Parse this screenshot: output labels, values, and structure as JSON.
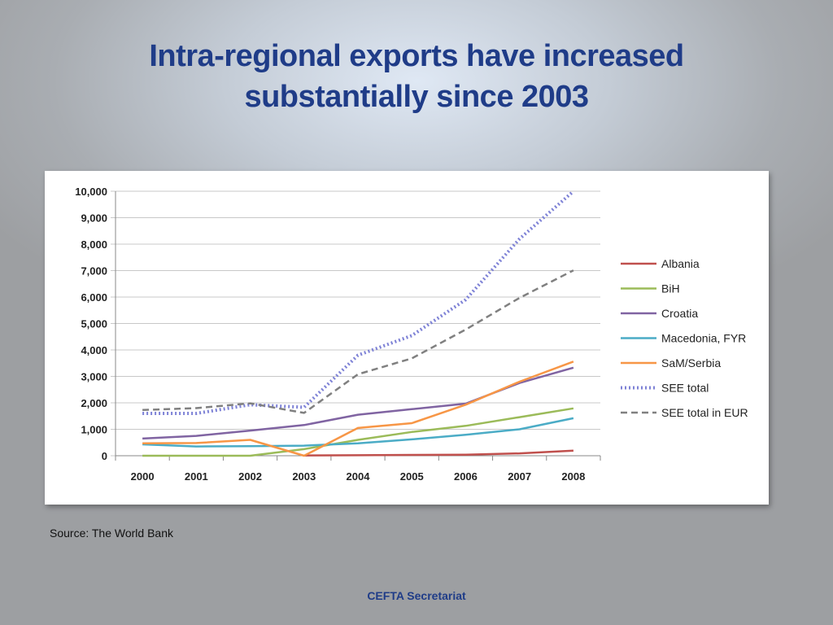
{
  "slide": {
    "title_line1": "Intra-regional exports have increased",
    "title_line2": "substantially since 2003",
    "source": "Source: The World Bank",
    "footer": "CEFTA Secretariat"
  },
  "chart_data": {
    "type": "line",
    "title": "",
    "xlabel": "",
    "ylabel": "",
    "ylim": [
      0,
      10000
    ],
    "yticks": [
      0,
      1000,
      2000,
      3000,
      4000,
      5000,
      6000,
      7000,
      8000,
      9000,
      10000
    ],
    "ytick_labels": [
      "0",
      "1,000",
      "2,000",
      "3,000",
      "4,000",
      "5,000",
      "6,000",
      "7,000",
      "8,000",
      "9,000",
      "10,000"
    ],
    "grid": "horizontal",
    "legend_position": "right",
    "categories": [
      "2000",
      "2001",
      "2002",
      "2003",
      "2004",
      "2005",
      "2006",
      "2007",
      "2008"
    ],
    "series": [
      {
        "name": "Albania",
        "color": "#c0504d",
        "style": "solid",
        "values": [
          null,
          null,
          null,
          10,
          20,
          30,
          40,
          90,
          190
        ]
      },
      {
        "name": "BiH",
        "color": "#9bbb59",
        "style": "solid",
        "values": [
          0,
          0,
          0,
          250,
          600,
          900,
          1130,
          1460,
          1790
        ]
      },
      {
        "name": "Croatia",
        "color": "#8064a2",
        "style": "solid",
        "values": [
          650,
          750,
          950,
          1160,
          1550,
          1760,
          1970,
          2750,
          3330
        ]
      },
      {
        "name": "Macedonia, FYR",
        "color": "#4bacc6",
        "style": "solid",
        "values": [
          430,
          350,
          360,
          380,
          470,
          620,
          790,
          1000,
          1420
        ]
      },
      {
        "name": "SaM/Serbia",
        "color": "#f79646",
        "style": "solid",
        "values": [
          470,
          480,
          600,
          0,
          1050,
          1230,
          1930,
          2800,
          3560
        ]
      },
      {
        "name": "SEE total",
        "color": "#7e82d6",
        "style": "dotted",
        "values": [
          1600,
          1600,
          1930,
          1830,
          3800,
          4540,
          5900,
          8200,
          10000
        ]
      },
      {
        "name": "SEE total in EUR",
        "color": "#808080",
        "style": "dashed",
        "values": [
          1730,
          1800,
          1980,
          1620,
          3080,
          3680,
          4770,
          5970,
          7010
        ]
      }
    ]
  }
}
